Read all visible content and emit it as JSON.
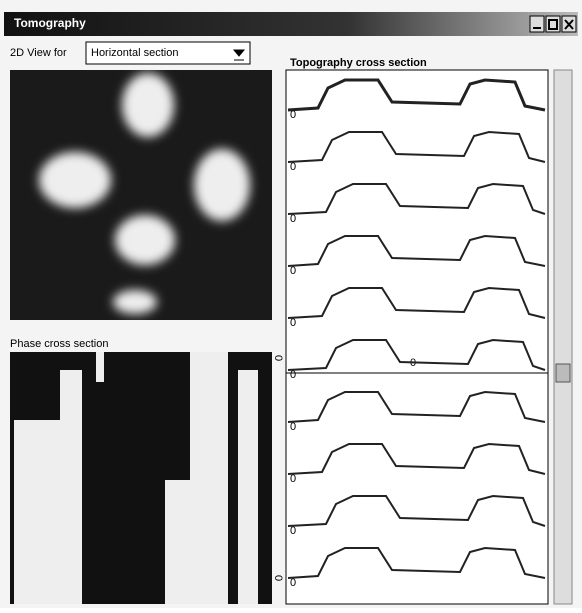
{
  "window": {
    "title": "Tomography"
  },
  "view_selector": {
    "label": "2D View for",
    "value": "Horizontal section"
  },
  "topography": {
    "title": "Topography cross section",
    "trace_labels": [
      "0",
      "0",
      "0",
      "0",
      "0",
      "0",
      "0",
      "0",
      "0",
      "0"
    ],
    "center_label": "0"
  },
  "phase": {
    "title": "Phase cross section",
    "side_labels": [
      "0",
      "0"
    ]
  }
}
